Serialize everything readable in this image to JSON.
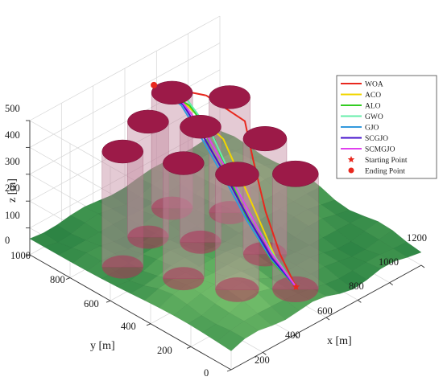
{
  "chart_data": {
    "type": "3d-surface-paths",
    "xlabel": "x [m]",
    "ylabel": "y [m]",
    "zlabel": "z [m]",
    "xlim": [
      0,
      1200
    ],
    "ylim": [
      0,
      1000
    ],
    "zlim": [
      0,
      500
    ],
    "x_ticks": [
      "200",
      "400",
      "600",
      "800",
      "1000",
      "1200"
    ],
    "y_ticks": [
      "0",
      "200",
      "400",
      "600",
      "800",
      "1000"
    ],
    "z_ticks": [
      "0",
      "100",
      "200",
      "300",
      "400",
      "500"
    ],
    "grid": true,
    "legend_position": "right",
    "legend": [
      {
        "label": "WOA",
        "color": "#e8281e",
        "marker": "line"
      },
      {
        "label": "ACO",
        "color": "#f2d500",
        "marker": "line"
      },
      {
        "label": "ALO",
        "color": "#33cc22",
        "marker": "line"
      },
      {
        "label": "GWO",
        "color": "#66eeaa",
        "marker": "line"
      },
      {
        "label": "GJO",
        "color": "#3399dd",
        "marker": "line"
      },
      {
        "label": "SCGJO",
        "color": "#4411cc",
        "marker": "line"
      },
      {
        "label": "SCMGJO",
        "color": "#e040ee",
        "marker": "line"
      },
      {
        "label": "Starting Point",
        "color": "#e8281e",
        "marker": "star"
      },
      {
        "label": "Ending Point",
        "color": "#e8281e",
        "marker": "circle"
      }
    ],
    "cylinders": [
      {
        "x": 230,
        "y": 720,
        "radius": 85,
        "height": 430
      },
      {
        "x": 480,
        "y": 790,
        "radius": 85,
        "height": 430
      },
      {
        "x": 720,
        "y": 860,
        "radius": 85,
        "height": 430
      },
      {
        "x": 360,
        "y": 520,
        "radius": 85,
        "height": 430
      },
      {
        "x": 620,
        "y": 640,
        "radius": 85,
        "height": 430
      },
      {
        "x": 880,
        "y": 700,
        "radius": 85,
        "height": 430
      },
      {
        "x": 470,
        "y": 340,
        "radius": 90,
        "height": 430
      },
      {
        "x": 760,
        "y": 430,
        "radius": 90,
        "height": 430
      },
      {
        "x": 660,
        "y": 200,
        "radius": 95,
        "height": 430
      }
    ],
    "start_point": {
      "x": 600,
      "y": 150,
      "z": 50
    },
    "end_point": {
      "x": 720,
      "y": 950,
      "z": 420
    },
    "series": [
      {
        "name": "WOA",
        "color": "#e8281e",
        "points": [
          [
            600,
            150,
            50
          ],
          [
            640,
            260,
            110
          ],
          [
            700,
            380,
            200
          ],
          [
            800,
            520,
            300
          ],
          [
            900,
            640,
            360
          ],
          [
            860,
            800,
            400
          ],
          [
            720,
            950,
            420
          ]
        ]
      },
      {
        "name": "ACO",
        "color": "#f2d500",
        "points": [
          [
            600,
            150,
            50
          ],
          [
            615,
            260,
            100
          ],
          [
            660,
            380,
            180
          ],
          [
            720,
            520,
            260
          ],
          [
            790,
            660,
            320
          ],
          [
            770,
            820,
            380
          ],
          [
            720,
            950,
            420
          ]
        ]
      },
      {
        "name": "ALO",
        "color": "#33cc22",
        "points": [
          [
            600,
            150,
            50
          ],
          [
            605,
            270,
            90
          ],
          [
            630,
            400,
            160
          ],
          [
            690,
            540,
            240
          ],
          [
            760,
            680,
            320
          ],
          [
            780,
            820,
            380
          ],
          [
            720,
            950,
            420
          ]
        ]
      },
      {
        "name": "GWO",
        "color": "#66eeaa",
        "points": [
          [
            600,
            150,
            50
          ],
          [
            620,
            280,
            110
          ],
          [
            650,
            420,
            190
          ],
          [
            700,
            560,
            270
          ],
          [
            760,
            700,
            340
          ],
          [
            790,
            840,
            390
          ],
          [
            720,
            950,
            420
          ]
        ]
      },
      {
        "name": "GJO",
        "color": "#3399dd",
        "points": [
          [
            600,
            150,
            50
          ],
          [
            600,
            270,
            100
          ],
          [
            620,
            410,
            180
          ],
          [
            660,
            550,
            260
          ],
          [
            700,
            690,
            330
          ],
          [
            740,
            830,
            390
          ],
          [
            720,
            950,
            420
          ]
        ]
      },
      {
        "name": "SCGJO",
        "color": "#4411cc",
        "points": [
          [
            600,
            150,
            50
          ],
          [
            610,
            280,
            100
          ],
          [
            640,
            420,
            180
          ],
          [
            680,
            560,
            260
          ],
          [
            720,
            700,
            330
          ],
          [
            750,
            830,
            390
          ],
          [
            720,
            950,
            420
          ]
        ]
      },
      {
        "name": "SCMGJO",
        "color": "#e040ee",
        "points": [
          [
            600,
            150,
            50
          ],
          [
            620,
            290,
            110
          ],
          [
            660,
            430,
            190
          ],
          [
            700,
            570,
            270
          ],
          [
            740,
            710,
            340
          ],
          [
            760,
            840,
            390
          ],
          [
            720,
            950,
            420
          ]
        ]
      }
    ]
  }
}
